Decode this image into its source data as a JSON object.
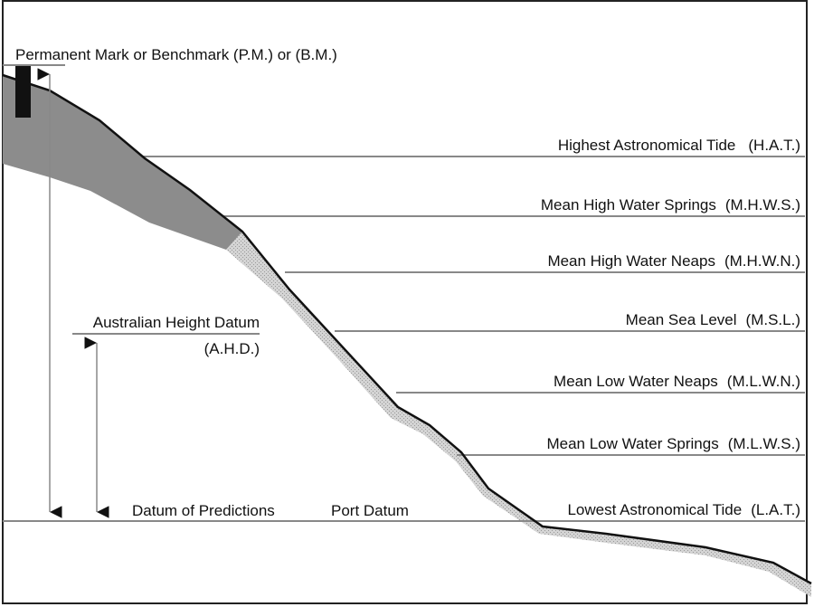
{
  "benchmark": {
    "label": "Permanent Mark or Benchmark (P.M.) or (B.M.)"
  },
  "ahd": {
    "name": "Australian Height Datum",
    "abbr": "(A.H.D.)"
  },
  "bottom_labels": {
    "datum_of_predictions": "Datum of Predictions",
    "port_datum": "Port Datum"
  },
  "levels": [
    {
      "name": "Highest Astronomical Tide",
      "abbr": "(H.A.T.)"
    },
    {
      "name": "Mean High Water Springs",
      "abbr": "(M.H.W.S.)"
    },
    {
      "name": "Mean High Water Neaps",
      "abbr": "(M.H.W.N.)"
    },
    {
      "name": "Mean Sea Level",
      "abbr": "(M.S.L.)"
    },
    {
      "name": "Mean Low Water Neaps",
      "abbr": "(M.L.W.N.)"
    },
    {
      "name": "Mean Low Water Springs",
      "abbr": "(M.L.W.S.)"
    },
    {
      "name": "Lowest Astronomical Tide",
      "abbr": "(L.A.T.)"
    }
  ],
  "colors": {
    "land_fill": "#8c8c8c",
    "intertidal_band": "#c8c8c8",
    "line": "#111111",
    "level_line": "#888888"
  }
}
